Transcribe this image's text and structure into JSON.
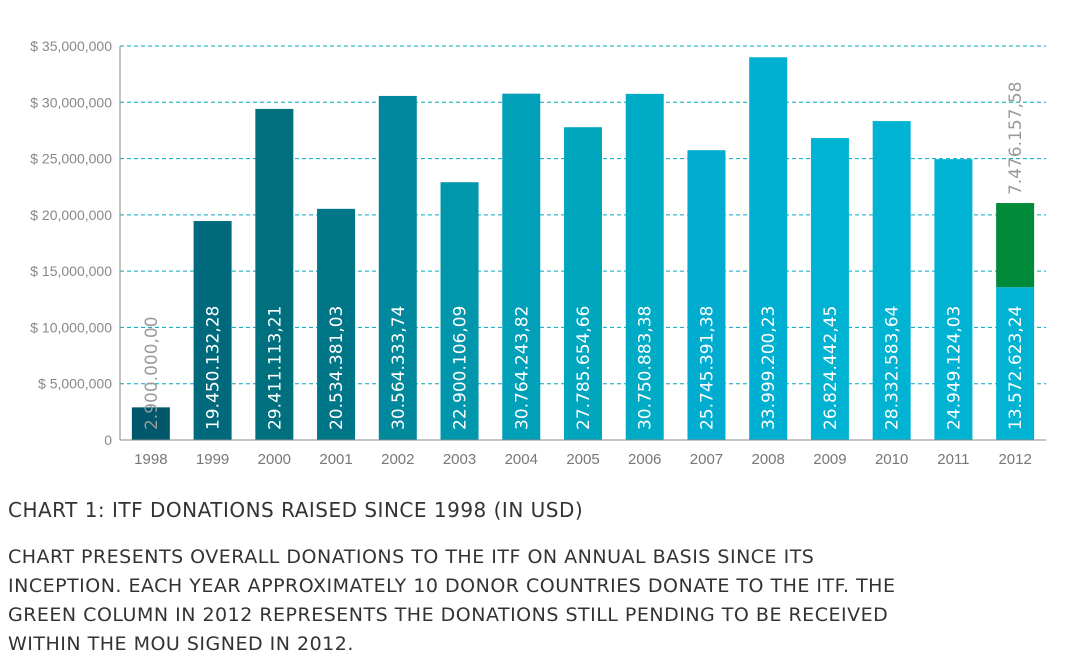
{
  "chart_data": {
    "type": "bar",
    "categories": [
      "1998",
      "1999",
      "2000",
      "2001",
      "2002",
      "2003",
      "2004",
      "2005",
      "2006",
      "2007",
      "2008",
      "2009",
      "2010",
      "2011",
      "2012"
    ],
    "values": [
      2900000.0,
      19450132.28,
      29411113.21,
      20534381.03,
      30564333.74,
      22900106.09,
      30764243.82,
      27785654.66,
      30750883.38,
      25745391.38,
      33999200.23,
      26824442.45,
      28332583.64,
      24949124.03,
      13572623.24
    ],
    "data_labels": [
      "2.900.000,00",
      "19.450.132,28",
      "29.411.113,21",
      "20.534.381,03",
      "30.564.333,74",
      "22.900.106,09",
      "30.764.243,82",
      "27.785.654,66",
      "30.750.883,38",
      "25.745.391,38",
      "33.999.200,23",
      "26.824.442,45",
      "28.332.583,64",
      "24.949.124,03",
      "13.572.623,24"
    ],
    "bar_colors": [
      "#00586a",
      "#006a7c",
      "#00707f",
      "#007789",
      "#00899c",
      "#0096ab",
      "#00a0b9",
      "#00a6be",
      "#00abc6",
      "#00add0",
      "#00b0d2",
      "#00b3d3",
      "#00b3d3",
      "#00b3d3",
      "#00b3d3"
    ],
    "pending": {
      "category": "2012",
      "value": 7476157.58,
      "label": "7.476.157,58",
      "color": "#008a3a"
    },
    "ylim": [
      0,
      35000000
    ],
    "yticks": [
      0,
      5000000,
      10000000,
      15000000,
      20000000,
      25000000,
      30000000,
      35000000
    ],
    "ytick_labels": [
      "0",
      "$ 5,000,000",
      "$ 10,000,000",
      "$ 15,000,000",
      "$ 20,000,000",
      "$ 25,000,000",
      "$ 30,000,000",
      "$ 35,000,000"
    ],
    "grid": true,
    "grid_color": "#00a6be",
    "title": "",
    "xlabel": "",
    "ylabel": ""
  },
  "caption": {
    "title": "CHART 1: ITF DONATIONS RAISED SINCE 1998 (IN USD)",
    "body": "CHART PRESENTS OVERALL DONATIONS TO THE ITF ON ANNUAL BASIS SINCE ITS INCEPTION. EACH YEAR APPROXIMATELY 10 DONOR COUNTRIES DONATE TO THE ITF. THE GREEN COLUMN IN 2012 REPRESENTS THE DONATIONS STILL PENDING TO BE RECEIVED WITHIN THE MOU SIGNED IN 2012."
  }
}
